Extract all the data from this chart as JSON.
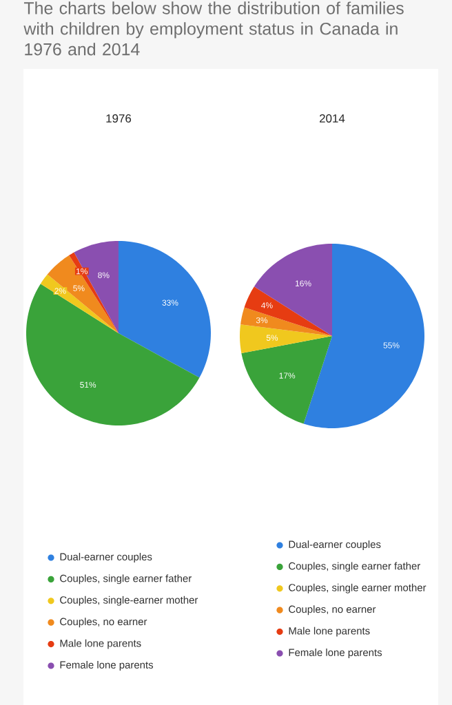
{
  "chart_data": [
    {
      "type": "pie",
      "title": "1976",
      "annotations": [
        "The charts below show the distribution of families with children by employment status in Canada in 1976 and 2014"
      ],
      "categories": [
        "Dual-earner couples",
        "Couples, single earner father",
        "Couples, single-earner mother",
        "Couples, no earner",
        "Male lone parents",
        "Female lone parents"
      ],
      "values": [
        33,
        51,
        2,
        5,
        1,
        8
      ],
      "value_labels": [
        "33%",
        "51%",
        "2%",
        "5%",
        "1%",
        "8%"
      ],
      "data_labels": true,
      "colors": [
        "#2f80e0",
        "#3aa33a",
        "#f0c81e",
        "#f08a1e",
        "#e63c12",
        "#8a4fb0"
      ],
      "legend": "bottom"
    },
    {
      "type": "pie",
      "title": "2014",
      "categories": [
        "Dual-earner couples",
        "Couples, single earner father",
        "Couples, single earner mother",
        "Couples, no earner",
        "Male lone parents",
        "Female lone parents"
      ],
      "values": [
        55,
        17,
        5,
        3,
        4,
        16
      ],
      "value_labels": [
        "55%",
        "17%",
        "5%",
        "3%",
        "4%",
        "16%"
      ],
      "data_labels": true,
      "colors": [
        "#2f80e0",
        "#3aa33a",
        "#f0c81e",
        "#f08a1e",
        "#e63c12",
        "#8a4fb0"
      ],
      "legend": "bottom"
    }
  ]
}
